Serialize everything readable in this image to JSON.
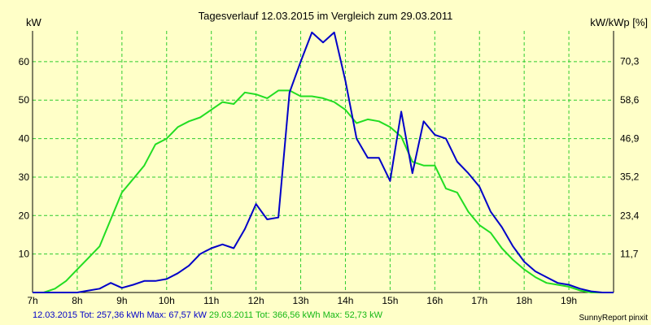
{
  "chart_data": {
    "type": "line",
    "title": "Tagesverlauf 12.03.2015 im Vergleich zum 29.03.2011",
    "ylabel_left": "kW",
    "ylabel_right": "kW/kWp [%]",
    "x_tick_labels": [
      "7h",
      "8h",
      "9h",
      "10h",
      "11h",
      "12h",
      "13h",
      "14h",
      "15h",
      "16h",
      "17h",
      "18h",
      "19h"
    ],
    "xlim": [
      7,
      20
    ],
    "ylim": [
      0,
      68
    ],
    "y_ticks": [
      10,
      20,
      30,
      40,
      50,
      60
    ],
    "y_right_tick_labels": [
      "11,7",
      "23,4",
      "35,2",
      "46,9",
      "58,6",
      "70,3"
    ],
    "y_right_tick_values": [
      11.7,
      23.4,
      35.2,
      46.9,
      58.6,
      70.3
    ],
    "y_right_max_pct": 79.6,
    "grid": true,
    "series": [
      {
        "name": "12.03.2015",
        "color": "#0000c8",
        "x": [
          7.0,
          7.25,
          7.5,
          7.75,
          8.0,
          8.25,
          8.5,
          8.75,
          9.0,
          9.25,
          9.5,
          9.75,
          10.0,
          10.25,
          10.5,
          10.75,
          11.0,
          11.25,
          11.5,
          11.75,
          12.0,
          12.25,
          12.5,
          12.75,
          13.0,
          13.25,
          13.5,
          13.75,
          14.0,
          14.25,
          14.5,
          14.75,
          15.0,
          15.25,
          15.5,
          15.75,
          16.0,
          16.25,
          16.5,
          16.75,
          17.0,
          17.25,
          17.5,
          17.75,
          18.0,
          18.25,
          18.5,
          18.75,
          19.0,
          19.25,
          19.5,
          19.75,
          20.0
        ],
        "values": [
          0,
          0,
          0,
          0,
          0,
          0.5,
          1,
          2.5,
          1.2,
          2,
          3,
          3,
          3.5,
          5,
          7,
          10,
          11.5,
          12.5,
          11.5,
          16.5,
          23,
          19,
          19.5,
          52,
          60,
          67.6,
          65,
          67.6,
          55,
          40,
          35,
          35,
          29,
          47,
          31,
          44.5,
          41,
          40,
          34,
          31,
          27.5,
          21,
          17,
          12,
          8,
          5.5,
          4,
          2.5,
          2,
          1,
          0.3,
          0,
          0
        ]
      },
      {
        "name": "29.03.2011",
        "color": "#22dd22",
        "x": [
          7.0,
          7.25,
          7.5,
          7.75,
          8.0,
          8.25,
          8.5,
          8.75,
          9.0,
          9.25,
          9.5,
          9.75,
          10.0,
          10.25,
          10.5,
          10.75,
          11.0,
          11.25,
          11.5,
          11.75,
          12.0,
          12.25,
          12.5,
          12.75,
          13.0,
          13.25,
          13.5,
          13.75,
          14.0,
          14.25,
          14.5,
          14.75,
          15.0,
          15.25,
          15.5,
          15.75,
          16.0,
          16.25,
          16.5,
          16.75,
          17.0,
          17.25,
          17.5,
          17.75,
          18.0,
          18.25,
          18.5,
          18.75,
          19.0,
          19.25,
          19.5,
          19.75,
          20.0
        ],
        "values": [
          0,
          0,
          1,
          3,
          6,
          9,
          12,
          19,
          26,
          29.5,
          33,
          38.5,
          40,
          43,
          44.5,
          45.5,
          47.5,
          49.5,
          49,
          52,
          51.5,
          50.5,
          52.5,
          52.5,
          51,
          51,
          50.5,
          49.5,
          47.5,
          44,
          45,
          44.5,
          43,
          40.5,
          34,
          33,
          33,
          27,
          26,
          21,
          17.5,
          15.5,
          11.5,
          8.5,
          6,
          4,
          2.5,
          2,
          1.5,
          0.5,
          0,
          0,
          0
        ]
      }
    ]
  },
  "footer": {
    "series1": {
      "date": "12.03.2015",
      "tot_label": "Tot:",
      "tot_value": "257,36 kWh",
      "max_label": "Max:",
      "max_value": "67,57 kW"
    },
    "series2": {
      "date": "29.03.2011",
      "tot_label": "Tot:",
      "tot_value": "366,56 kWh",
      "max_label": "Max:",
      "max_value": "52,73 kW"
    }
  },
  "credit": "SunnyReport pinxit",
  "colors": {
    "background": "#ffffc8",
    "grid": "#2ecc2e",
    "series1": "#0000c8",
    "series2": "#22dd22"
  }
}
